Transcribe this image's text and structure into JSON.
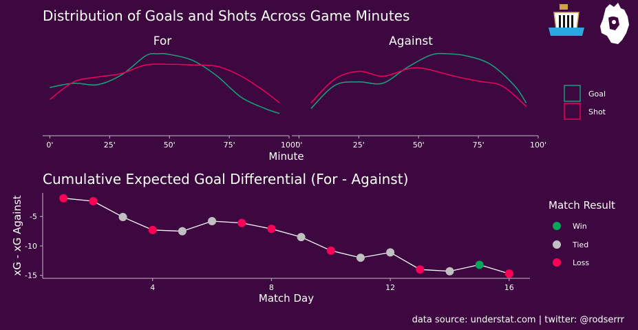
{
  "colors": {
    "background": "#3d0740",
    "goal": "#1a9e78",
    "shot": "#e8005a",
    "win": "#00a65a",
    "tied": "#c0c0c0",
    "loss": "#ff0058",
    "line": "#ffffff"
  },
  "logos": {
    "club": "newcastle-crest-icon",
    "league": "premier-league-lion-icon"
  },
  "footer": "data source: understat.com | twitter: @rodserrr",
  "chart_data": [
    {
      "type": "area",
      "title": "Distribution of Goals and Shots Across Game Minutes",
      "xlabel": "Minute",
      "xlim": [
        -3,
        100
      ],
      "xticks": [
        0,
        25,
        50,
        75,
        100
      ],
      "xtick_labels": [
        "0'",
        "25'",
        "50'",
        "75'",
        "100'"
      ],
      "legend": [
        {
          "name": "Goal",
          "key": "goal"
        },
        {
          "name": "Shot",
          "key": "shot"
        }
      ],
      "panels": [
        {
          "name": "For",
          "series": [
            {
              "name": "Goal",
              "x": [
                0,
                10,
                20,
                30,
                40,
                45,
                50,
                60,
                70,
                80,
                90,
                96
              ],
              "y": [
                0.52,
                0.58,
                0.56,
                0.7,
                0.97,
                1.0,
                0.99,
                0.9,
                0.68,
                0.38,
                0.22,
                0.15
              ]
            },
            {
              "name": "Shot",
              "x": [
                0,
                10,
                20,
                30,
                40,
                50,
                60,
                70,
                80,
                90,
                96
              ],
              "y": [
                0.35,
                0.6,
                0.67,
                0.72,
                0.84,
                0.85,
                0.84,
                0.82,
                0.68,
                0.46,
                0.3
              ]
            }
          ]
        },
        {
          "name": "Against",
          "series": [
            {
              "name": "Goal",
              "x": [
                5,
                15,
                25,
                35,
                45,
                55,
                62,
                70,
                80,
                90,
                95
              ],
              "y": [
                0.22,
                0.55,
                0.6,
                0.58,
                0.8,
                0.98,
                1.0,
                0.97,
                0.85,
                0.55,
                0.3
              ]
            },
            {
              "name": "Shot",
              "x": [
                5,
                15,
                25,
                35,
                45,
                50,
                55,
                65,
                75,
                85,
                95
              ],
              "y": [
                0.3,
                0.64,
                0.75,
                0.68,
                0.78,
                0.8,
                0.77,
                0.68,
                0.61,
                0.54,
                0.25
              ]
            }
          ]
        }
      ]
    },
    {
      "type": "line",
      "title": "Cumulative Expected Goal Differential (For - Against)",
      "xlabel": "Match Day",
      "ylabel": "xG - xG Against",
      "xlim": [
        0.3,
        16.7
      ],
      "ylim": [
        -15.5,
        -1
      ],
      "xticks": [
        4,
        8,
        12,
        16
      ],
      "yticks": [
        -5,
        -10,
        -15
      ],
      "legend_title": "Match Result",
      "legend": [
        {
          "name": "Win",
          "key": "win"
        },
        {
          "name": "Tied",
          "key": "tied"
        },
        {
          "name": "Loss",
          "key": "loss"
        }
      ],
      "points": [
        {
          "x": 1,
          "y": -1.9,
          "result": "loss"
        },
        {
          "x": 2,
          "y": -2.4,
          "result": "loss"
        },
        {
          "x": 3,
          "y": -5.1,
          "result": "tied"
        },
        {
          "x": 4,
          "y": -7.3,
          "result": "loss"
        },
        {
          "x": 5,
          "y": -7.5,
          "result": "tied"
        },
        {
          "x": 6,
          "y": -5.8,
          "result": "tied"
        },
        {
          "x": 7,
          "y": -6.1,
          "result": "loss"
        },
        {
          "x": 8,
          "y": -7.1,
          "result": "loss"
        },
        {
          "x": 9,
          "y": -8.5,
          "result": "tied"
        },
        {
          "x": 10,
          "y": -10.8,
          "result": "loss"
        },
        {
          "x": 11,
          "y": -12.0,
          "result": "tied"
        },
        {
          "x": 12,
          "y": -11.1,
          "result": "tied"
        },
        {
          "x": 13,
          "y": -14.0,
          "result": "loss"
        },
        {
          "x": 14,
          "y": -14.3,
          "result": "tied"
        },
        {
          "x": 15,
          "y": -13.2,
          "result": "win"
        },
        {
          "x": 16,
          "y": -14.7,
          "result": "loss"
        }
      ]
    }
  ]
}
